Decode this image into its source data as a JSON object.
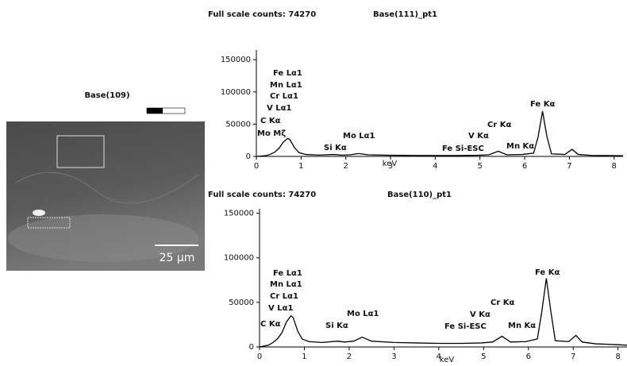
{
  "image": {
    "title": "Base(109)",
    "scale_bar": "25 µm"
  },
  "chart_data": [
    {
      "type": "line",
      "header": "Full scale counts: 74270",
      "title": "Base(111)_pt1",
      "x_label": "keV",
      "color": "#000000",
      "x": [
        0,
        0.2,
        0.3,
        0.4,
        0.5,
        0.6,
        0.7,
        0.75,
        0.85,
        0.95,
        1.1,
        1.4,
        1.74,
        1.9,
        2.1,
        2.29,
        2.5,
        3,
        3.5,
        4,
        4.5,
        4.95,
        5.2,
        5.41,
        5.6,
        5.95,
        6.2,
        6.3,
        6.4,
        6.5,
        6.6,
        6.9,
        7.06,
        7.2,
        7.5,
        8,
        8.2
      ],
      "values": [
        0,
        1000,
        3000,
        6000,
        12000,
        22000,
        28000,
        26000,
        14000,
        6000,
        3000,
        2000,
        3000,
        2000,
        2500,
        4500,
        2500,
        1800,
        1500,
        1400,
        1400,
        1800,
        2500,
        8000,
        2500,
        3000,
        5000,
        30000,
        70000,
        30000,
        4000,
        3000,
        11000,
        3000,
        1500,
        1200,
        1000
      ],
      "xlim": [
        0,
        8.2
      ],
      "xticks": [
        0,
        1,
        2,
        3,
        4,
        5,
        6,
        7,
        8
      ],
      "ylim": [
        0,
        165000
      ],
      "yticks": [
        0,
        50000,
        100000,
        150000
      ],
      "annotations": [
        "Fe Lα1",
        "Mn Lα1",
        "Cr Lα1",
        "V Lα1",
        "C Kα",
        "Mo Mζ",
        "Si Kα",
        "Mo Lα1",
        "Fe Si-ESC",
        "V Kα",
        "Cr Kα",
        "Mn Kα",
        "Fe Kα"
      ]
    },
    {
      "type": "line",
      "header": "Full scale counts: 74270",
      "title": "Base(110)_pt1",
      "x_label": "keV",
      "color": "#000000",
      "x": [
        0,
        0.2,
        0.3,
        0.4,
        0.5,
        0.6,
        0.7,
        0.75,
        0.85,
        0.95,
        1.1,
        1.4,
        1.74,
        1.9,
        2.1,
        2.29,
        2.5,
        3,
        3.5,
        4,
        4.5,
        4.95,
        5.2,
        5.41,
        5.6,
        5.95,
        6.2,
        6.3,
        6.4,
        6.5,
        6.6,
        6.9,
        7.06,
        7.2,
        7.5,
        8,
        8.2
      ],
      "values": [
        0,
        2000,
        5000,
        9000,
        16000,
        28000,
        35000,
        33000,
        18000,
        9000,
        6000,
        5000,
        6500,
        5500,
        6500,
        11000,
        6500,
        5000,
        4500,
        4000,
        4000,
        4500,
        5500,
        12000,
        5500,
        6000,
        9000,
        40000,
        77000,
        40000,
        7000,
        6000,
        13000,
        5500,
        3500,
        2500,
        2000
      ],
      "xlim": [
        0,
        8.2
      ],
      "xticks": [
        0,
        1,
        2,
        3,
        4,
        5,
        6,
        7,
        8
      ],
      "ylim": [
        0,
        155000
      ],
      "yticks": [
        0,
        50000,
        100000,
        150000
      ],
      "annotations": [
        "Fe Lα1",
        "Mn Lα1",
        "Cr Lα1",
        "V Lα1",
        "C Kα",
        "Si Kα",
        "Mo Lα1",
        "Fe Si-ESC",
        "V Kα",
        "Cr Kα",
        "Mn Kα",
        "Fe Kα"
      ]
    }
  ]
}
